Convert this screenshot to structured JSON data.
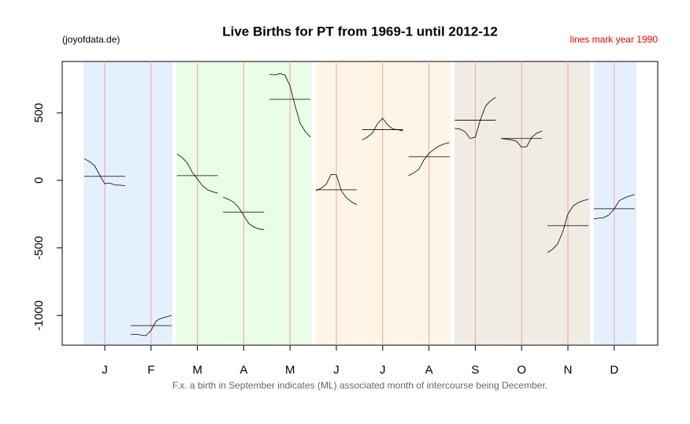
{
  "chart_data": {
    "type": "monthplot",
    "title": "Live Births for PT from 1969-1 until 2012-12",
    "subtitle": "(joyofdata.de)",
    "annotation": "lines mark year 1990",
    "caption": "F.x. a birth in September indicates (ML) associated month of intercourse being December.",
    "categories": [
      "J",
      "F",
      "M",
      "A",
      "M",
      "J",
      "J",
      "A",
      "S",
      "O",
      "N",
      "D"
    ],
    "means": [
      30,
      -1075,
      35,
      -235,
      600,
      -70,
      375,
      175,
      445,
      310,
      -335,
      -210
    ],
    "subseries": [
      [
        160,
        140,
        110,
        40,
        -25,
        -20,
        -35,
        -35,
        -40
      ],
      [
        -1140,
        -1140,
        -1145,
        -1150,
        -1110,
        -1040,
        -1020,
        -1010,
        -1000
      ],
      [
        195,
        170,
        130,
        60,
        10,
        -40,
        -70,
        -85,
        -95
      ],
      [
        -125,
        -140,
        -160,
        -200,
        -260,
        -320,
        -345,
        -360,
        -365
      ],
      [
        785,
        780,
        790,
        780,
        700,
        550,
        420,
        360,
        320
      ],
      [
        -75,
        -60,
        -30,
        45,
        40,
        -80,
        -130,
        -160,
        -180
      ],
      [
        300,
        320,
        350,
        420,
        460,
        410,
        380,
        375,
        365
      ],
      [
        35,
        55,
        80,
        150,
        200,
        230,
        255,
        270,
        280
      ],
      [
        385,
        380,
        360,
        310,
        320,
        450,
        550,
        590,
        615
      ],
      [
        310,
        305,
        300,
        290,
        245,
        250,
        320,
        350,
        365
      ],
      [
        -535,
        -510,
        -470,
        -380,
        -250,
        -190,
        -165,
        -150,
        -140
      ],
      [
        -285,
        -280,
        -275,
        -255,
        -210,
        -150,
        -130,
        -115,
        -105
      ]
    ],
    "ylim": [
      -1220,
      880
    ],
    "yticks": [
      -1000,
      -500,
      0,
      500
    ],
    "annotation_color": "#ff0000",
    "line_color": "#000000"
  }
}
